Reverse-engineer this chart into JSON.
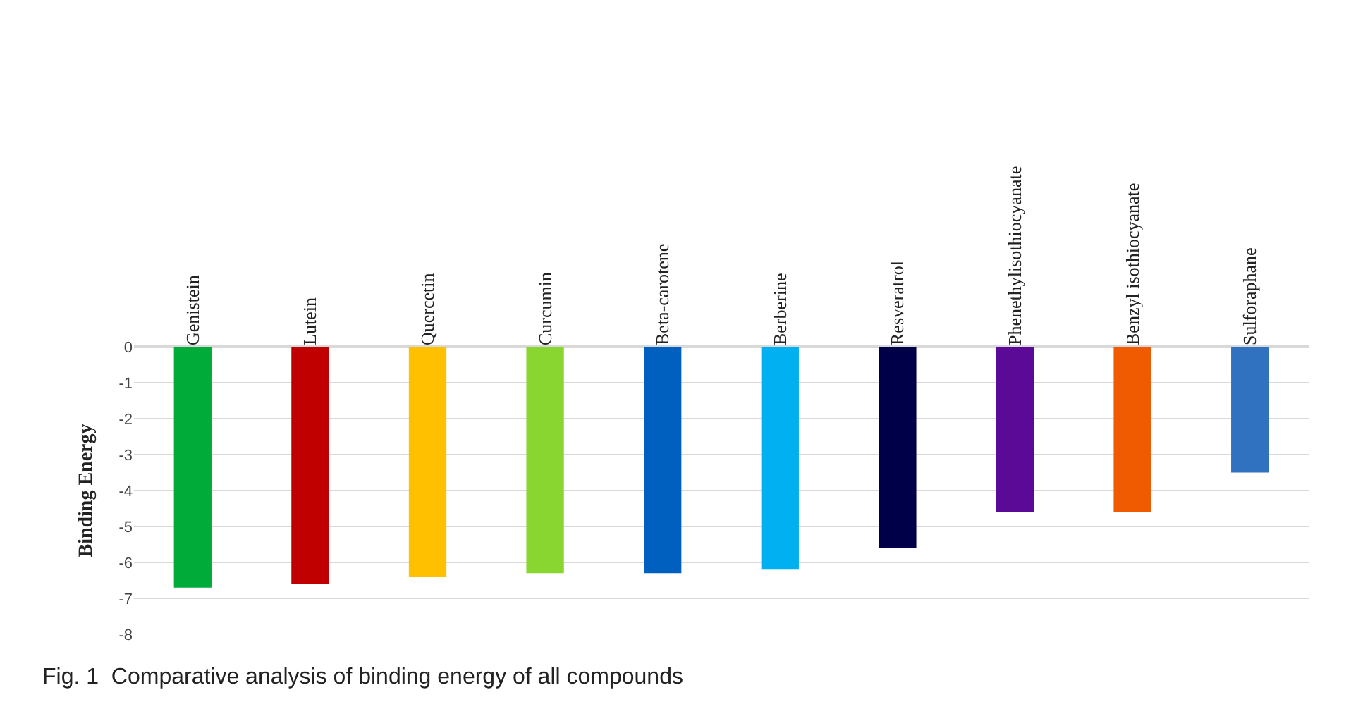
{
  "chart_data": {
    "type": "bar",
    "ylabel": "Binding Energy",
    "categories": [
      "Genistein",
      "Lutein",
      "Quercetin",
      "Curcumin",
      "Beta-carotene",
      "Berberine",
      "Resveratrol",
      "Phenethylisothiocyanate",
      "Benzyl isothiocyanate",
      "Sulforaphane"
    ],
    "values": [
      -6.7,
      -6.6,
      -6.4,
      -6.3,
      -6.3,
      -6.2,
      -5.6,
      -4.6,
      -4.6,
      -3.5
    ],
    "colors": [
      "#00ab3a",
      "#c00000",
      "#ffc000",
      "#8ad630",
      "#0060c0",
      "#00b0f0",
      "#000048",
      "#5a0a96",
      "#f05a00",
      "#3072c0"
    ],
    "ylim": [
      -8,
      0
    ],
    "yticks": [
      -8,
      -7,
      -6,
      -5,
      -4,
      -3,
      -2,
      -1,
      0
    ],
    "grid": "y",
    "annotations": [
      "Fig. 1  Comparative analysis of binding energy of all compounds"
    ]
  }
}
